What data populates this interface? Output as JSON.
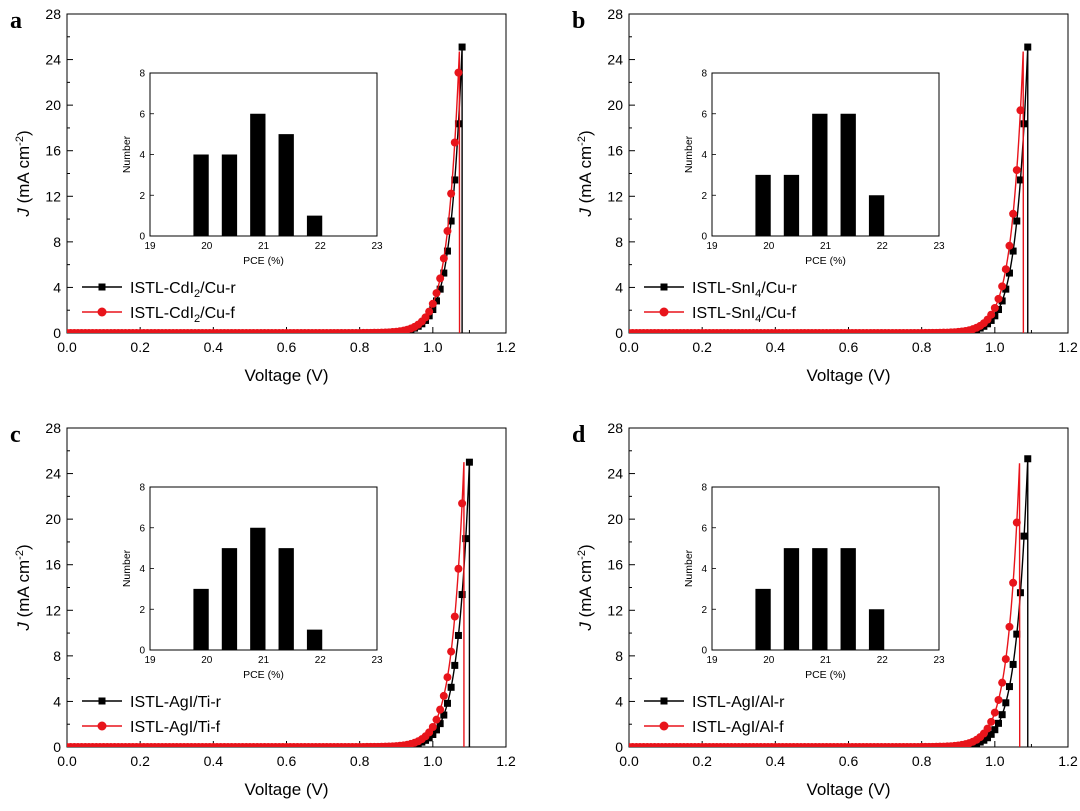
{
  "chart_data": [
    {
      "type": "line",
      "panel_label": "a",
      "xlabel": "Voltage (V)",
      "ylabel_italic": "J",
      "ylabel_rest": " (mA cm",
      "ylabel_sup": "-2",
      "ylabel_end": ")",
      "xlim": [
        0.0,
        1.2
      ],
      "ylim": [
        0,
        28
      ],
      "xticks": [
        "0.0",
        "0.2",
        "0.4",
        "0.6",
        "0.8",
        "1.0",
        "1.2"
      ],
      "yticks": [
        "0",
        "4",
        "8",
        "12",
        "16",
        "20",
        "24",
        "28"
      ],
      "series": [
        {
          "name": "ISTL-CdI2/Cu-r",
          "legend_main": "ISTL-CdI",
          "legend_sub": "2",
          "legend_end": "/Cu-r",
          "color": "#000000",
          "marker": "square",
          "jsc": 25.1,
          "voc": 1.08,
          "knee_v": 0.94
        },
        {
          "name": "ISTL-CdI2/Cu-f",
          "legend_main": "ISTL-CdI",
          "legend_sub": "2",
          "legend_end": "/Cu-f",
          "color": "#e8141b",
          "marker": "circle",
          "jsc": 25.1,
          "voc": 1.073,
          "knee_v": 0.92
        }
      ],
      "inset": {
        "type": "bar",
        "xlabel": "PCE (%)",
        "ylabel": "Number",
        "xlim": [
          19,
          23
        ],
        "ylim": [
          0,
          8
        ],
        "xticks": [
          "19",
          "20",
          "21",
          "22",
          "23"
        ],
        "yticks": [
          "0",
          "2",
          "4",
          "6",
          "8"
        ],
        "x": [
          19.9,
          20.4,
          20.9,
          21.4,
          21.9
        ],
        "values": [
          4,
          4,
          6,
          5,
          1
        ]
      }
    },
    {
      "type": "line",
      "panel_label": "b",
      "xlabel": "Voltage (V)",
      "ylabel_italic": "J",
      "ylabel_rest": " (mA cm",
      "ylabel_sup": "-2",
      "ylabel_end": ")",
      "xlim": [
        0.0,
        1.2
      ],
      "ylim": [
        0,
        28
      ],
      "xticks": [
        "0.0",
        "0.2",
        "0.4",
        "0.6",
        "0.8",
        "1.0",
        "1.2"
      ],
      "yticks": [
        "0",
        "4",
        "8",
        "12",
        "16",
        "20",
        "24",
        "28"
      ],
      "series": [
        {
          "name": "ISTL-SnI4/Cu-r",
          "legend_main": "ISTL-SnI",
          "legend_sub": "4",
          "legend_end": "/Cu-r",
          "color": "#000000",
          "marker": "square",
          "jsc": 25.1,
          "voc": 1.09,
          "knee_v": 0.94
        },
        {
          "name": "ISTL-SnI4/Cu-f",
          "legend_main": "ISTL-SnI",
          "legend_sub": "4",
          "legend_end": "/Cu-f",
          "color": "#e8141b",
          "marker": "circle",
          "jsc": 25.1,
          "voc": 1.078,
          "knee_v": 0.91
        }
      ],
      "inset": {
        "type": "bar",
        "xlabel": "PCE (%)",
        "ylabel": "Number",
        "xlim": [
          19,
          23
        ],
        "ylim": [
          0,
          8
        ],
        "xticks": [
          "19",
          "20",
          "21",
          "22",
          "23"
        ],
        "yticks": [
          "0",
          "2",
          "4",
          "6",
          "8"
        ],
        "x": [
          19.9,
          20.4,
          20.9,
          21.4,
          21.9
        ],
        "values": [
          3,
          3,
          6,
          6,
          2
        ]
      }
    },
    {
      "type": "line",
      "panel_label": "c",
      "xlabel": "Voltage (V)",
      "ylabel_italic": "J",
      "ylabel_rest": " (mA cm",
      "ylabel_sup": "-2",
      "ylabel_end": ")",
      "xlim": [
        0.0,
        1.2
      ],
      "ylim": [
        0,
        28
      ],
      "xticks": [
        "0.0",
        "0.2",
        "0.4",
        "0.6",
        "0.8",
        "1.0",
        "1.2"
      ],
      "yticks": [
        "0",
        "4",
        "8",
        "12",
        "16",
        "20",
        "24",
        "28"
      ],
      "series": [
        {
          "name": "ISTL-AgI/Ti-r",
          "legend_main": "ISTL-AgI/Ti-r",
          "legend_sub": "",
          "legend_end": "",
          "color": "#000000",
          "marker": "square",
          "jsc": 25.0,
          "voc": 1.1,
          "knee_v": 0.93
        },
        {
          "name": "ISTL-AgI/Ti-f",
          "legend_main": "ISTL-AgI/Ti-f",
          "legend_sub": "",
          "legend_end": "",
          "color": "#e8141b",
          "marker": "circle",
          "jsc": 25.0,
          "voc": 1.085,
          "knee_v": 0.88
        }
      ],
      "inset": {
        "type": "bar",
        "xlabel": "PCE (%)",
        "ylabel": "Number",
        "xlim": [
          19,
          23
        ],
        "ylim": [
          0,
          8
        ],
        "xticks": [
          "19",
          "20",
          "21",
          "22",
          "23"
        ],
        "yticks": [
          "0",
          "2",
          "4",
          "6",
          "8"
        ],
        "x": [
          19.9,
          20.4,
          20.9,
          21.4,
          21.9
        ],
        "values": [
          3,
          5,
          6,
          5,
          1
        ]
      }
    },
    {
      "type": "line",
      "panel_label": "d",
      "xlabel": "Voltage (V)",
      "ylabel_italic": "J",
      "ylabel_rest": " (mA cm",
      "ylabel_sup": "-2",
      "ylabel_end": ")",
      "xlim": [
        0.0,
        1.2
      ],
      "ylim": [
        0,
        28
      ],
      "xticks": [
        "0.0",
        "0.2",
        "0.4",
        "0.6",
        "0.8",
        "1.0",
        "1.2"
      ],
      "yticks": [
        "0",
        "4",
        "8",
        "12",
        "16",
        "20",
        "24",
        "28"
      ],
      "series": [
        {
          "name": "ISTL-AgI/Al-r",
          "legend_main": "ISTL-AgI/Al-r",
          "legend_sub": "",
          "legend_end": "",
          "color": "#000000",
          "marker": "square",
          "jsc": 25.3,
          "voc": 1.09,
          "knee_v": 0.91
        },
        {
          "name": "ISTL-AgI/Al-f",
          "legend_main": "ISTL-AgI/Al-f",
          "legend_sub": "",
          "legend_end": "",
          "color": "#e8141b",
          "marker": "circle",
          "jsc": 25.3,
          "voc": 1.068,
          "knee_v": 0.86
        }
      ],
      "inset": {
        "type": "bar",
        "xlabel": "PCE (%)",
        "ylabel": "Number",
        "xlim": [
          19,
          23
        ],
        "ylim": [
          0,
          8
        ],
        "xticks": [
          "19",
          "20",
          "21",
          "22",
          "23"
        ],
        "yticks": [
          "0",
          "2",
          "4",
          "6",
          "8"
        ],
        "x": [
          19.9,
          20.4,
          20.9,
          21.4,
          21.9
        ],
        "values": [
          3,
          5,
          5,
          5,
          2
        ]
      }
    }
  ]
}
